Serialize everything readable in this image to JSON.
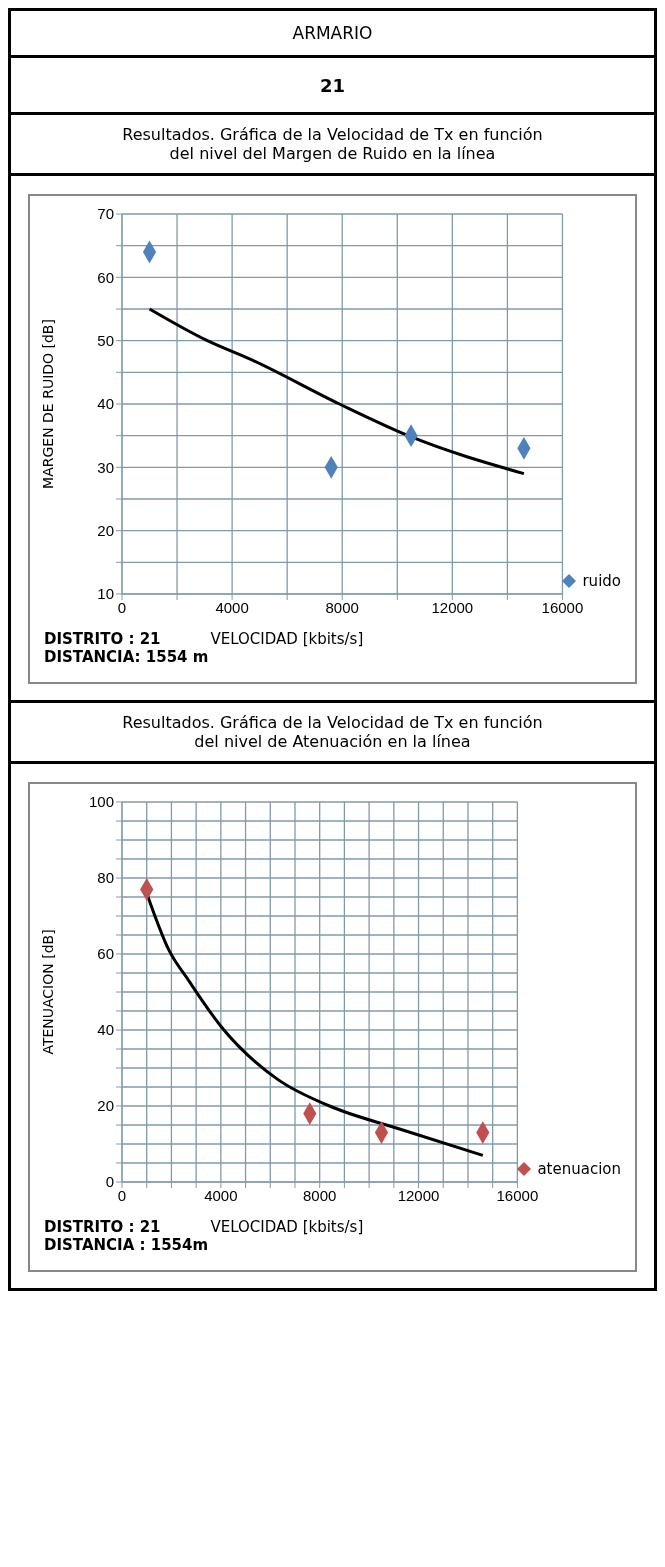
{
  "chart_data": [
    {
      "type": "other",
      "title": "ARMARIO",
      "annotations": [
        "21"
      ]
    },
    {
      "type": "scatter",
      "title": "Resultados. Gráfica de la Velocidad de Tx en función\ndel nivel del Margen de Ruido en la línea",
      "xlabel": "VELOCIDAD  [kbits/s]",
      "ylabel": "MARGEN DE RUIDO  [dB]",
      "xlim": [
        0,
        16000
      ],
      "xticks": [
        0,
        {
          "value": 2000,
          "label": null
        },
        4000,
        {
          "value": 6000,
          "label": null
        },
        8000,
        {
          "value": 10000,
          "label": null
        },
        12000,
        {
          "value": 14000,
          "label": null
        },
        16000
      ],
      "ylim": [
        10,
        70
      ],
      "yticks": [
        10,
        {
          "value": 15,
          "label": null
        },
        20,
        {
          "value": 25,
          "label": null
        },
        30,
        {
          "value": 35,
          "label": null
        },
        40,
        {
          "value": 45,
          "label": null
        },
        50,
        {
          "value": 55,
          "label": null
        },
        60,
        {
          "value": 65,
          "label": null
        },
        70
      ],
      "grid": true,
      "legend": "bottom right",
      "marker": "diamond",
      "annotations": [
        "DISTRITO : 21",
        "DISTANCIA: 1554 m"
      ],
      "series": [
        {
          "name": "ruido",
          "color": "#4f81bd",
          "x": [
            1000,
            7600,
            10500,
            14600
          ],
          "values": [
            64,
            30,
            35,
            33
          ]
        },
        {
          "type": "line",
          "color": "#000000",
          "marker": "none",
          "x": [
            1000,
            3100,
            4700,
            7900,
            10400,
            14600
          ],
          "values": [
            55,
            50,
            47,
            40,
            35,
            29
          ]
        }
      ]
    },
    {
      "type": "scatter",
      "title": "Resultados. Gráfica de la Velocidad de Tx en función\ndel nivel de Atenuación en la línea",
      "xlabel": "VELOCIDAD  [kbits/s]",
      "ylabel": "ATENUACION  [dB]",
      "xlim": [
        0,
        16000
      ],
      "xticks": [
        0,
        {
          "value": 1000,
          "label": null
        },
        {
          "value": 2000,
          "label": null
        },
        {
          "value": 3000,
          "label": null
        },
        4000,
        {
          "value": 5000,
          "label": null
        },
        {
          "value": 6000,
          "label": null
        },
        {
          "value": 7000,
          "label": null
        },
        8000,
        {
          "value": 9000,
          "label": null
        },
        {
          "value": 10000,
          "label": null
        },
        {
          "value": 11000,
          "label": null
        },
        12000,
        {
          "value": 13000,
          "label": null
        },
        {
          "value": 14000,
          "label": null
        },
        {
          "value": 15000,
          "label": null
        },
        16000
      ],
      "ylim": [
        0,
        100
      ],
      "yticks": [
        0,
        {
          "value": 5,
          "label": null
        },
        {
          "value": 10,
          "label": null
        },
        {
          "value": 15,
          "label": null
        },
        20,
        {
          "value": 25,
          "label": null
        },
        {
          "value": 30,
          "label": null
        },
        {
          "value": 35,
          "label": null
        },
        40,
        {
          "value": 45,
          "label": null
        },
        {
          "value": 50,
          "label": null
        },
        {
          "value": 55,
          "label": null
        },
        60,
        {
          "value": 65,
          "label": null
        },
        {
          "value": 70,
          "label": null
        },
        {
          "value": 75,
          "label": null
        },
        80,
        {
          "value": 85,
          "label": null
        },
        {
          "value": 90,
          "label": null
        },
        {
          "value": 95,
          "label": null
        },
        100
      ],
      "grid": true,
      "legend": "bottom right",
      "marker": "diamond",
      "annotations": [
        "DISTRITO : 21",
        "DISTANCIA : 1554m"
      ],
      "series": [
        {
          "name": "atenuacion",
          "color": "#c0504d",
          "x": [
            1000,
            7600,
            10500,
            14600
          ],
          "values": [
            77,
            18,
            13,
            13
          ]
        },
        {
          "type": "line",
          "color": "#000000",
          "marker": "none",
          "x": [
            1000,
            1900,
            2700,
            4000,
            6300,
            8400,
            11200,
            14600
          ],
          "values": [
            76,
            61,
            53,
            41,
            27,
            20,
            14,
            7
          ]
        }
      ]
    }
  ]
}
